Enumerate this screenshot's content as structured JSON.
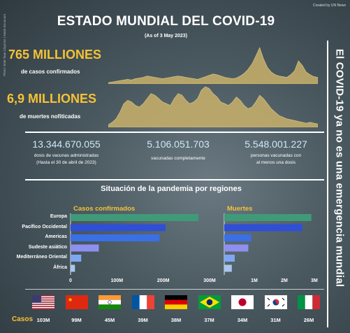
{
  "credit": "Created by UN News",
  "photo_credit": "Photo: Emir Taan Clayrons | Maria Bounoum",
  "title": "ESTADO MUNDIAL DEL COVID-19",
  "as_of": "(As of 3 May 2023)",
  "side_banner": "El COVID-19 ya no es una emergencia mundial",
  "cases": {
    "value": "765 MILLIONES",
    "label": "de casos confirmados"
  },
  "deaths": {
    "value": "6,9 MILLIONES",
    "label": "de muertes nofiticadas"
  },
  "stats": [
    {
      "value": "13.344.670.055",
      "label": "dosis de vacunas administradas",
      "label2": "(Hasta el 30 de abril de 2023)"
    },
    {
      "value": "5.106.051.703",
      "label": "vacunadas completamente",
      "label2": ""
    },
    {
      "value": "5.548.001.227",
      "label": "personas vacunadas con",
      "label2": "al menos una dosis"
    }
  ],
  "regions_title": "Situación de la pandemia por regiones",
  "casos_header": "Casos confirmados",
  "muertes_header": "Muertes",
  "colors": {
    "gold": "#f5c236",
    "bar_colors": [
      "#3f9a7a",
      "#2f4fd6",
      "#3a6fe6",
      "#8f8ff0",
      "#7fa6f0",
      "#a9c7ee"
    ]
  },
  "chart_data": [
    {
      "type": "area",
      "series": [
        {
          "values": [
            2,
            3,
            4,
            5,
            6,
            7,
            6,
            8,
            9,
            10,
            12,
            11,
            10,
            9,
            8,
            9,
            10,
            11,
            12,
            11,
            10,
            9,
            8,
            7,
            9,
            11,
            13,
            15,
            14,
            12,
            10,
            9,
            8,
            9,
            12,
            16,
            22,
            30,
            42,
            55,
            38,
            25,
            18,
            14,
            12,
            11,
            10,
            14,
            20,
            35,
            28,
            18,
            14,
            11,
            10
          ]
        }
      ]
    },
    {
      "type": "area",
      "series": [
        {
          "values": [
            3,
            6,
            10,
            18,
            28,
            32,
            30,
            26,
            24,
            28,
            34,
            40,
            38,
            34,
            30,
            28,
            26,
            34,
            40,
            38,
            32,
            28,
            30,
            34,
            44,
            48,
            46,
            40,
            36,
            30,
            28,
            26,
            30,
            36,
            32,
            26,
            22,
            24,
            30,
            38,
            34,
            28,
            22,
            18,
            14,
            12,
            10,
            9,
            8,
            7,
            6,
            5,
            6,
            5,
            4
          ]
        }
      ]
    },
    {
      "type": "bar",
      "title": "Casos confirmados",
      "categories": [
        "Europa",
        "Pacífico Occidental",
        "Americas",
        "Sudeste asiático",
        "Mediterráneo Oriental",
        "África"
      ],
      "values": [
        276,
        205,
        192,
        61,
        23,
        9.5
      ],
      "xlim": [
        0,
        300
      ],
      "ticks": [
        "0",
        "100M",
        "200M",
        "300M"
      ]
    },
    {
      "type": "bar",
      "title": "Muertes",
      "categories": [
        "Europa",
        "Pacífico Occidental",
        "Americas",
        "Sudeste asiático",
        "Mediterráneo Oriental",
        "África"
      ],
      "values": [
        2.9,
        2.6,
        0.9,
        0.8,
        0.35,
        0.25
      ],
      "xlim": [
        0,
        3
      ],
      "ticks": [
        "1M",
        "2M",
        "3M"
      ]
    }
  ],
  "flags_label": "Casos",
  "flags": [
    {
      "icon": "usa-flag-icon",
      "value": "103M"
    },
    {
      "icon": "china-flag-icon",
      "value": "99M"
    },
    {
      "icon": "india-flag-icon",
      "value": "45M"
    },
    {
      "icon": "france-flag-icon",
      "value": "39M"
    },
    {
      "icon": "germany-flag-icon",
      "value": "38M"
    },
    {
      "icon": "brazil-flag-icon",
      "value": "37M"
    },
    {
      "icon": "japan-flag-icon",
      "value": "34M"
    },
    {
      "icon": "korea-flag-icon",
      "value": "31M"
    },
    {
      "icon": "italy-flag-icon",
      "value": "26M"
    }
  ]
}
